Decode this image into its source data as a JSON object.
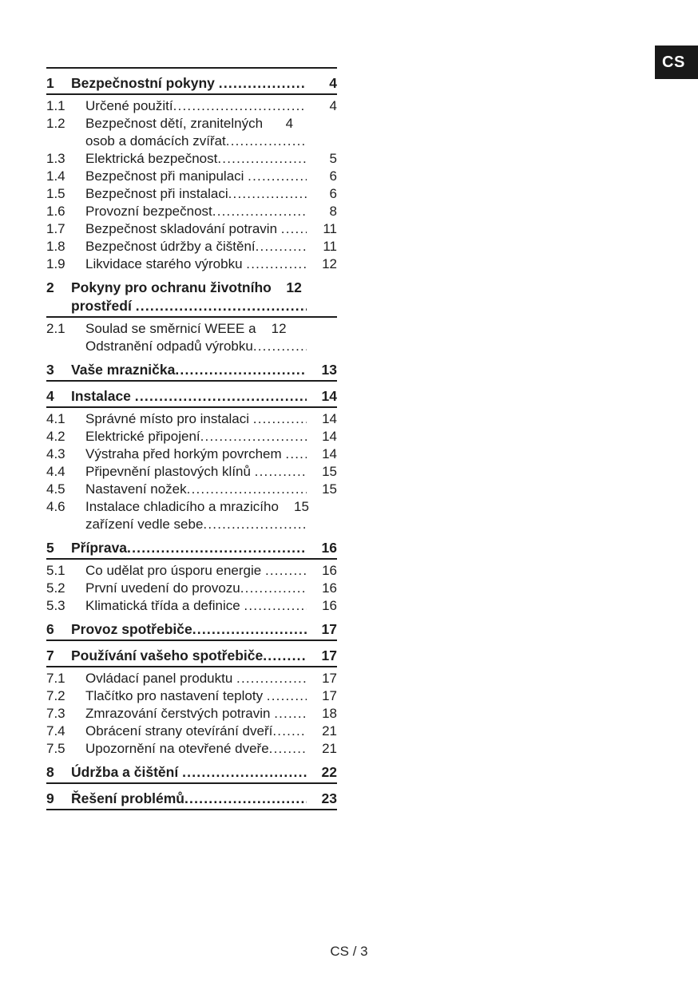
{
  "page": {
    "language_tab": "CS",
    "footer": "CS / 3"
  },
  "toc": {
    "entries": [
      {
        "bold": true,
        "lines": [
          {
            "num": "1",
            "text": "Bezpečnostní pokyny ",
            "leader": true,
            "page": "4"
          }
        ]
      },
      {
        "bold": false,
        "lines": [
          {
            "num": "1.1",
            "text": "Určené použití",
            "leader": true,
            "page": "4"
          }
        ]
      },
      {
        "bold": false,
        "lines": [
          {
            "num": "1.2",
            "text": "Bezpečnost dětí, zranitelných",
            "leader": false,
            "page": "4"
          },
          {
            "text": "osob a domácích zvířat",
            "leader": true
          }
        ]
      },
      {
        "bold": false,
        "lines": [
          {
            "num": "1.3",
            "text": "Elektrická bezpečnost",
            "leader": true,
            "page": "5"
          }
        ]
      },
      {
        "bold": false,
        "lines": [
          {
            "num": "1.4",
            "text": "Bezpečnost při manipulaci ",
            "leader": true,
            "page": "6"
          }
        ]
      },
      {
        "bold": false,
        "lines": [
          {
            "num": "1.5",
            "text": "Bezpečnost při instalaci",
            "leader": true,
            "page": "6"
          }
        ]
      },
      {
        "bold": false,
        "lines": [
          {
            "num": "1.6",
            "text": "Provozní bezpečnost",
            "leader": true,
            "page": "8"
          }
        ]
      },
      {
        "bold": false,
        "lines": [
          {
            "num": "1.7",
            "text": "Bezpečnost skladování potravin ",
            "leader": true,
            "page": "11"
          }
        ]
      },
      {
        "bold": false,
        "lines": [
          {
            "num": "1.8",
            "text": "Bezpečnost údržby a čištění",
            "leader": true,
            "page": "11"
          }
        ]
      },
      {
        "bold": false,
        "lines": [
          {
            "num": "1.9",
            "text": "Likvidace starého výrobku ",
            "leader": true,
            "page": "12"
          }
        ]
      },
      {
        "bold": true,
        "lines": [
          {
            "num": "2",
            "text": "Pokyny pro ochranu životního",
            "leader": false,
            "page": "12"
          },
          {
            "text": "prostředí ",
            "leader": true
          }
        ]
      },
      {
        "bold": false,
        "lines": [
          {
            "num": "2.1",
            "text": "Soulad se směrnicí WEEE a",
            "leader": false,
            "page": "12"
          },
          {
            "text": "Odstranění odpadů výrobku",
            "leader": true
          }
        ]
      },
      {
        "bold": true,
        "lines": [
          {
            "num": "3",
            "text": "Vaše mraznička",
            "leader": true,
            "page": "13"
          }
        ]
      },
      {
        "bold": true,
        "lines": [
          {
            "num": "4",
            "text": "Instalace ",
            "leader": true,
            "page": "14"
          }
        ]
      },
      {
        "bold": false,
        "lines": [
          {
            "num": "4.1",
            "text": "Správné místo pro instalaci ",
            "leader": true,
            "page": "14"
          }
        ]
      },
      {
        "bold": false,
        "lines": [
          {
            "num": "4.2",
            "text": "Elektrické připojení",
            "leader": true,
            "page": "14"
          }
        ]
      },
      {
        "bold": false,
        "lines": [
          {
            "num": "4.3",
            "text": "Výstraha před horkým povrchem ",
            "leader": true,
            "page": "14"
          }
        ]
      },
      {
        "bold": false,
        "lines": [
          {
            "num": "4.4",
            "text": "Připevnění plastových klínů ",
            "leader": true,
            "page": "15"
          }
        ]
      },
      {
        "bold": false,
        "lines": [
          {
            "num": "4.5",
            "text": "Nastavení nožek",
            "leader": true,
            "page": "15"
          }
        ]
      },
      {
        "bold": false,
        "lines": [
          {
            "num": "4.6",
            "text": "Instalace chladicího a mrazicího",
            "leader": false,
            "page": "15"
          },
          {
            "text": "zařízení vedle sebe",
            "leader": true
          }
        ]
      },
      {
        "bold": true,
        "lines": [
          {
            "num": "5",
            "text": "Příprava",
            "leader": true,
            "page": "16"
          }
        ]
      },
      {
        "bold": false,
        "lines": [
          {
            "num": "5.1",
            "text": "Co udělat pro úsporu energie ",
            "leader": true,
            "page": "16"
          }
        ]
      },
      {
        "bold": false,
        "lines": [
          {
            "num": "5.2",
            "text": "První uvedení do provozu",
            "leader": true,
            "page": "16"
          }
        ]
      },
      {
        "bold": false,
        "lines": [
          {
            "num": "5.3",
            "text": "Klimatická třída a definice ",
            "leader": true,
            "page": "16"
          }
        ]
      },
      {
        "bold": true,
        "lines": [
          {
            "num": "6",
            "text": "Provoz spotřebiče",
            "leader": true,
            "page": "17"
          }
        ]
      },
      {
        "bold": true,
        "lines": [
          {
            "num": "7",
            "text": "Používání vašeho spotřebiče",
            "leader": true,
            "page": "17"
          }
        ]
      },
      {
        "bold": false,
        "lines": [
          {
            "num": "7.1",
            "text": "Ovládací panel produktu ",
            "leader": true,
            "page": "17"
          }
        ]
      },
      {
        "bold": false,
        "lines": [
          {
            "num": "7.2",
            "text": "Tlačítko pro nastavení teploty ",
            "leader": true,
            "page": "17"
          }
        ]
      },
      {
        "bold": false,
        "lines": [
          {
            "num": "7.3",
            "text": "Zmrazování čerstvých potravin ",
            "leader": true,
            "page": "18"
          }
        ]
      },
      {
        "bold": false,
        "lines": [
          {
            "num": "7.4",
            "text": "Obrácení strany otevírání dveří",
            "leader": true,
            "page": "21"
          }
        ]
      },
      {
        "bold": false,
        "lines": [
          {
            "num": "7.5",
            "text": "Upozornění na otevřené dveře",
            "leader": true,
            "page": "21"
          }
        ]
      },
      {
        "bold": true,
        "lines": [
          {
            "num": "8",
            "text": "Údržba a čištění ",
            "leader": true,
            "page": "22"
          }
        ]
      },
      {
        "bold": true,
        "lines": [
          {
            "num": "9",
            "text": "Řešení problémů",
            "leader": true,
            "page": "23"
          }
        ]
      }
    ]
  }
}
